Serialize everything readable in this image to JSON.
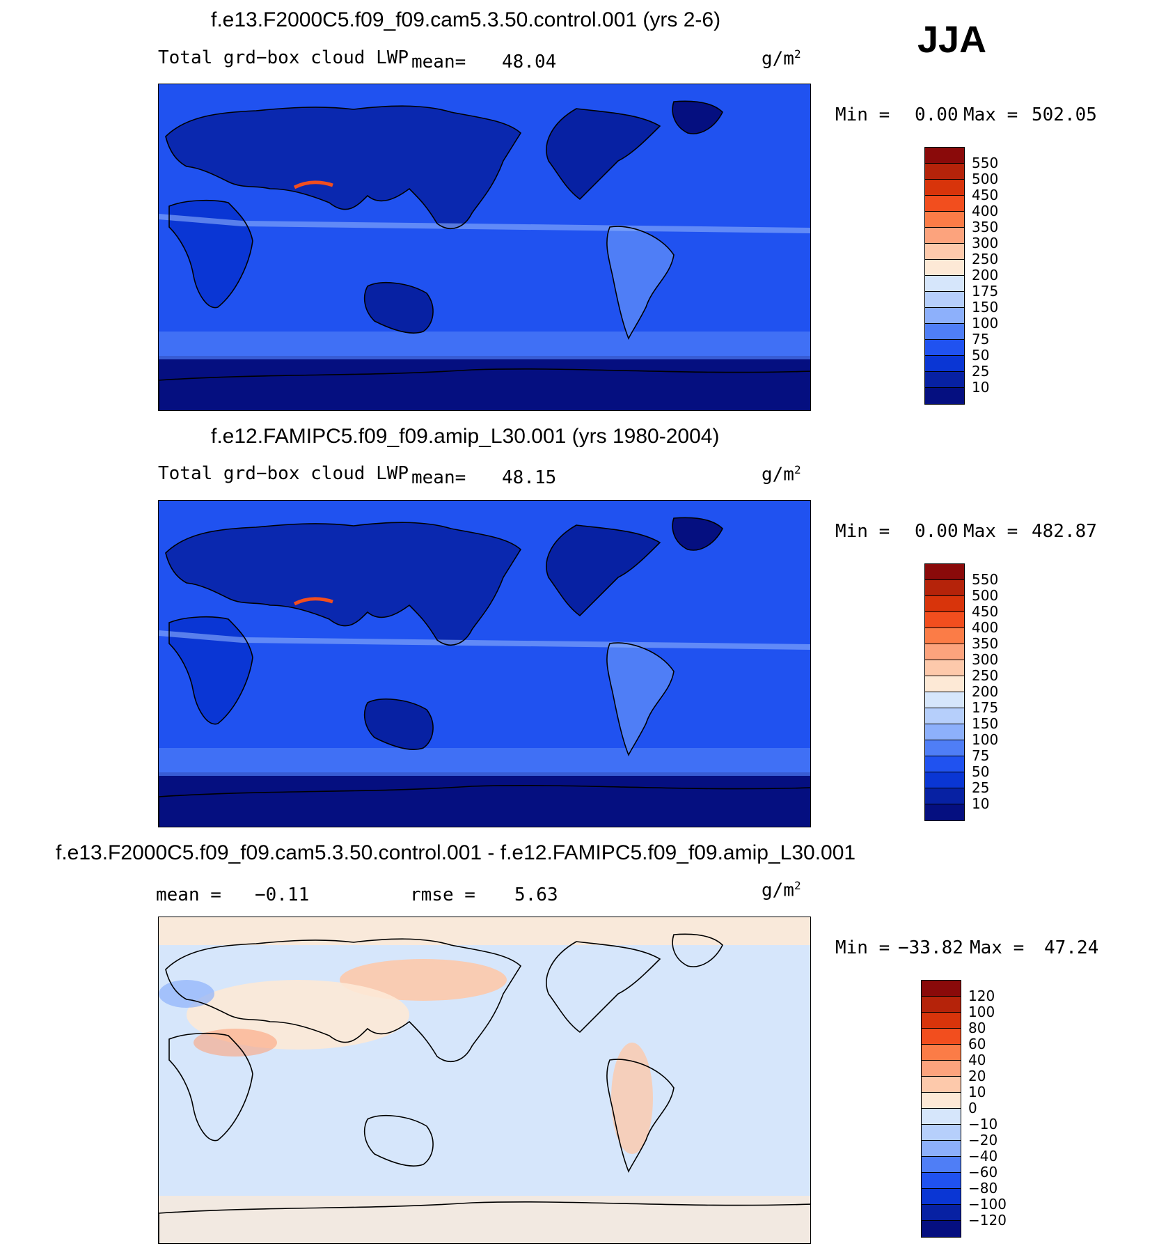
{
  "season": "JJA",
  "panels": [
    {
      "title": "f.e13.F2000C5.f09_f09.cam5.3.50.control.001 (yrs 2-6)",
      "left_label": "Total grd−box cloud LWP",
      "stat_label": "mean=",
      "stat_value": "48.04",
      "units": "g/m",
      "units_sup": "2",
      "min_label": "Min =",
      "min_value": "0.00",
      "max_label": "Max =",
      "max_value": "502.05",
      "colorbar": {
        "levels": [
          "550",
          "500",
          "450",
          "400",
          "350",
          "300",
          "250",
          "200",
          "175",
          "150",
          "100",
          "75",
          "50",
          "25",
          "10"
        ],
        "colors": [
          "#8a0a0a",
          "#b5230a",
          "#d8340b",
          "#f24e1e",
          "#fb7c47",
          "#fca37d",
          "#fdc9ab",
          "#fde9d6",
          "#d6e6fb",
          "#b6cffb",
          "#8db0fb",
          "#4f7ef6",
          "#2052f0",
          "#0a36d4",
          "#0721a3",
          "#050f80"
        ]
      },
      "field_kind": "lwp"
    },
    {
      "title": "f.e12.FAMIPC5.f09_f09.amip_L30.001 (yrs 1980-2004)",
      "left_label": "Total grd−box cloud LWP",
      "stat_label": "mean=",
      "stat_value": "48.15",
      "units": "g/m",
      "units_sup": "2",
      "min_label": "Min =",
      "min_value": "0.00",
      "max_label": "Max =",
      "max_value": "482.87",
      "colorbar": {
        "levels": [
          "550",
          "500",
          "450",
          "400",
          "350",
          "300",
          "250",
          "200",
          "175",
          "150",
          "100",
          "75",
          "50",
          "25",
          "10"
        ],
        "colors": [
          "#8a0a0a",
          "#b5230a",
          "#d8340b",
          "#f24e1e",
          "#fb7c47",
          "#fca37d",
          "#fdc9ab",
          "#fde9d6",
          "#d6e6fb",
          "#b6cffb",
          "#8db0fb",
          "#4f7ef6",
          "#2052f0",
          "#0a36d4",
          "#0721a3",
          "#050f80"
        ]
      },
      "field_kind": "lwp"
    },
    {
      "title": "f.e13.F2000C5.f09_f09.cam5.3.50.control.001 - f.e12.FAMIPC5.f09_f09.amip_L30.001",
      "left_label": "mean =",
      "left_value": "−0.11",
      "stat_label": "rmse =",
      "stat_value": "5.63",
      "units": "g/m",
      "units_sup": "2",
      "min_label": "Min =",
      "min_value": "−33.82",
      "max_label": "Max =",
      "max_value": "47.24",
      "colorbar": {
        "levels": [
          "120",
          "100",
          "80",
          "60",
          "40",
          "20",
          "10",
          "0",
          "−10",
          "−20",
          "−40",
          "−60",
          "−80",
          "−100",
          "−120"
        ],
        "colors": [
          "#8a0a0a",
          "#b5230a",
          "#d8340b",
          "#f24e1e",
          "#fb7c47",
          "#fca37d",
          "#fdc9ab",
          "#fde9d6",
          "#d6e6fb",
          "#b6cffb",
          "#8db0fb",
          "#4f7ef6",
          "#2052f0",
          "#0a36d4",
          "#0721a3",
          "#050f80"
        ]
      },
      "field_kind": "diff"
    }
  ]
}
